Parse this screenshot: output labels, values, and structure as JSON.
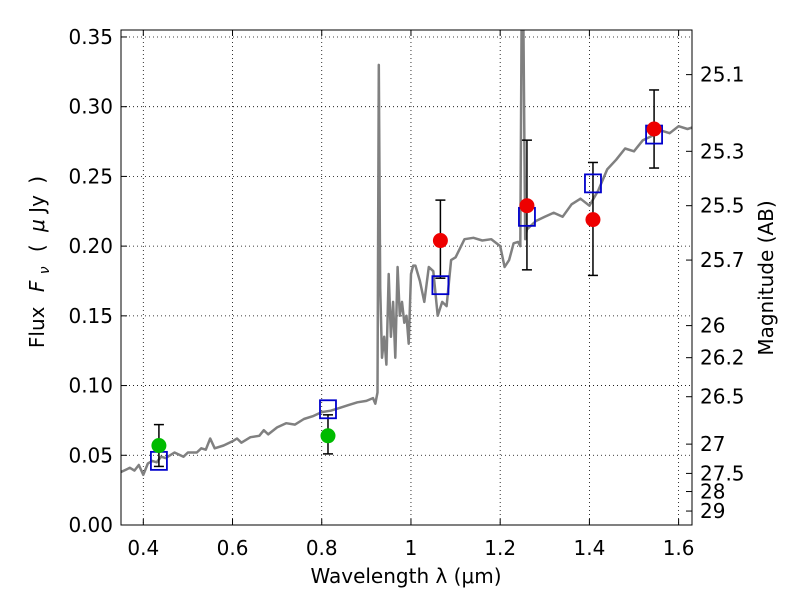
{
  "chart_data": {
    "type": "scatter",
    "xlabel": "Wavelength  λ (μm)",
    "ylabel": "Flux  F_ν  ( μJy )",
    "ylabel_parts": {
      "pre": "Flux",
      "symbol": "F",
      "sub": "ν",
      "post_open": "(",
      "mu": "μ",
      "unit": "Jy",
      "post_close": ")"
    },
    "y2label": "Magnitude (AB)",
    "xlim": [
      0.35,
      1.63
    ],
    "ylim": [
      0.0,
      0.355
    ],
    "grid": true,
    "x_ticks": [
      0.4,
      0.6,
      0.8,
      1.0,
      1.2,
      1.4,
      1.6
    ],
    "x_tick_labels": [
      "0.4",
      "0.6",
      "0.8",
      "1",
      "1.2",
      "1.4",
      "1.6"
    ],
    "y_ticks": [
      0.0,
      0.05,
      0.1,
      0.15,
      0.2,
      0.25,
      0.3,
      0.35
    ],
    "y_tick_labels": [
      "0.00",
      "0.05",
      "0.10",
      "0.15",
      "0.20",
      "0.25",
      "0.30",
      "0.35"
    ],
    "y2_ticks": [
      {
        "flux": 0.323,
        "label": "25.1"
      },
      {
        "flux": 0.268,
        "label": "25.3"
      },
      {
        "flux": 0.229,
        "label": "25.5"
      },
      {
        "flux": 0.19,
        "label": "25.7"
      },
      {
        "flux": 0.143,
        "label": "26"
      },
      {
        "flux": 0.12,
        "label": "26.2"
      },
      {
        "flux": 0.092,
        "label": "26.5"
      },
      {
        "flux": 0.058,
        "label": "27"
      },
      {
        "flux": 0.037,
        "label": "27.5"
      },
      {
        "flux": 0.024,
        "label": "28"
      },
      {
        "flux": 0.01,
        "label": "29"
      }
    ],
    "spectrum": {
      "color": "#808080",
      "points": [
        [
          0.35,
          0.038
        ],
        [
          0.37,
          0.041
        ],
        [
          0.38,
          0.039
        ],
        [
          0.39,
          0.043
        ],
        [
          0.4,
          0.036
        ],
        [
          0.41,
          0.044
        ],
        [
          0.42,
          0.046
        ],
        [
          0.43,
          0.045
        ],
        [
          0.44,
          0.049
        ],
        [
          0.45,
          0.048
        ],
        [
          0.47,
          0.052
        ],
        [
          0.49,
          0.049
        ],
        [
          0.5,
          0.052
        ],
        [
          0.52,
          0.052
        ],
        [
          0.53,
          0.055
        ],
        [
          0.54,
          0.054
        ],
        [
          0.55,
          0.062
        ],
        [
          0.56,
          0.055
        ],
        [
          0.58,
          0.057
        ],
        [
          0.6,
          0.06
        ],
        [
          0.61,
          0.062
        ],
        [
          0.62,
          0.059
        ],
        [
          0.64,
          0.063
        ],
        [
          0.66,
          0.064
        ],
        [
          0.67,
          0.068
        ],
        [
          0.68,
          0.065
        ],
        [
          0.7,
          0.07
        ],
        [
          0.72,
          0.073
        ],
        [
          0.74,
          0.072
        ],
        [
          0.76,
          0.076
        ],
        [
          0.78,
          0.078
        ],
        [
          0.8,
          0.081
        ],
        [
          0.82,
          0.082
        ],
        [
          0.84,
          0.084
        ],
        [
          0.86,
          0.086
        ],
        [
          0.88,
          0.088
        ],
        [
          0.9,
          0.089
        ],
        [
          0.915,
          0.091
        ],
        [
          0.92,
          0.087
        ],
        [
          0.925,
          0.095
        ],
        [
          0.928,
          0.33
        ],
        [
          0.931,
          0.17
        ],
        [
          0.935,
          0.12
        ],
        [
          0.94,
          0.135
        ],
        [
          0.945,
          0.115
        ],
        [
          0.95,
          0.18
        ],
        [
          0.955,
          0.135
        ],
        [
          0.96,
          0.16
        ],
        [
          0.965,
          0.12
        ],
        [
          0.97,
          0.185
        ],
        [
          0.975,
          0.15
        ],
        [
          0.98,
          0.16
        ],
        [
          0.985,
          0.145
        ],
        [
          0.99,
          0.15
        ],
        [
          0.995,
          0.13
        ],
        [
          1.0,
          0.18
        ],
        [
          1.005,
          0.186
        ],
        [
          1.01,
          0.186
        ],
        [
          1.02,
          0.175
        ],
        [
          1.03,
          0.16
        ],
        [
          1.04,
          0.185
        ],
        [
          1.05,
          0.182
        ],
        [
          1.06,
          0.15
        ],
        [
          1.07,
          0.16
        ],
        [
          1.08,
          0.157
        ],
        [
          1.09,
          0.19
        ],
        [
          1.1,
          0.192
        ],
        [
          1.12,
          0.205
        ],
        [
          1.14,
          0.206
        ],
        [
          1.16,
          0.204
        ],
        [
          1.18,
          0.205
        ],
        [
          1.2,
          0.2
        ],
        [
          1.21,
          0.185
        ],
        [
          1.22,
          0.19
        ],
        [
          1.23,
          0.202
        ],
        [
          1.24,
          0.203
        ],
        [
          1.245,
          0.2
        ],
        [
          1.248,
          0.36
        ],
        [
          1.252,
          0.36
        ],
        [
          1.256,
          0.205
        ],
        [
          1.26,
          0.212
        ],
        [
          1.28,
          0.218
        ],
        [
          1.3,
          0.221
        ],
        [
          1.32,
          0.224
        ],
        [
          1.34,
          0.221
        ],
        [
          1.36,
          0.23
        ],
        [
          1.38,
          0.234
        ],
        [
          1.4,
          0.229
        ],
        [
          1.42,
          0.24
        ],
        [
          1.44,
          0.255
        ],
        [
          1.46,
          0.262
        ],
        [
          1.48,
          0.27
        ],
        [
          1.5,
          0.268
        ],
        [
          1.52,
          0.276
        ],
        [
          1.54,
          0.279
        ],
        [
          1.56,
          0.283
        ],
        [
          1.58,
          0.281
        ],
        [
          1.6,
          0.286
        ],
        [
          1.62,
          0.284
        ],
        [
          1.63,
          0.285
        ]
      ]
    },
    "model_photometry": {
      "marker": "open-square",
      "color": "#0000cc",
      "points": [
        {
          "x": 0.435,
          "y": 0.046
        },
        {
          "x": 0.814,
          "y": 0.083
        },
        {
          "x": 1.066,
          "y": 0.172
        },
        {
          "x": 1.26,
          "y": 0.221
        },
        {
          "x": 1.408,
          "y": 0.245
        },
        {
          "x": 1.545,
          "y": 0.28
        }
      ]
    },
    "observed_photometry": {
      "marker": "filled-circle",
      "points": [
        {
          "x": 0.435,
          "y": 0.057,
          "err_low": 0.015,
          "err_high": 0.015,
          "color": "#00bb00"
        },
        {
          "x": 0.814,
          "y": 0.064,
          "err_low": 0.013,
          "err_high": 0.015,
          "color": "#00bb00"
        },
        {
          "x": 1.066,
          "y": 0.204,
          "err_low": 0.027,
          "err_high": 0.029,
          "color": "#ee0000"
        },
        {
          "x": 1.26,
          "y": 0.229,
          "err_low": 0.046,
          "err_high": 0.047,
          "color": "#ee0000"
        },
        {
          "x": 1.408,
          "y": 0.219,
          "err_low": 0.04,
          "err_high": 0.041,
          "color": "#ee0000"
        },
        {
          "x": 1.545,
          "y": 0.284,
          "err_low": 0.028,
          "err_high": 0.028,
          "color": "#ee0000"
        }
      ]
    }
  }
}
